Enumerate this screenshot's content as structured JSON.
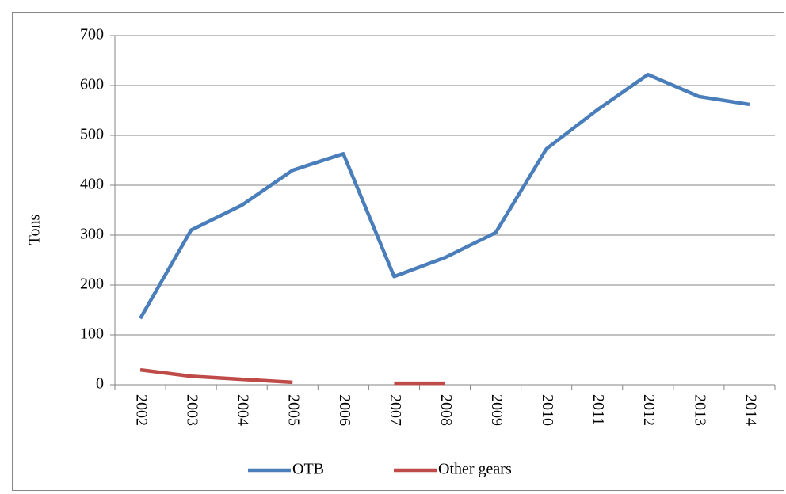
{
  "chart_data": {
    "type": "line",
    "y_label": "Tons",
    "categories": [
      "2002",
      "2003",
      "2004",
      "2005",
      "2006",
      "2007",
      "2008",
      "2009",
      "2010",
      "2011",
      "2012",
      "2013",
      "2014"
    ],
    "series": [
      {
        "name": "OTB",
        "color": "#4a7ebb",
        "values": [
          133,
          310,
          360,
          430,
          463,
          217,
          255,
          305,
          473,
          551,
          622,
          578,
          562
        ]
      },
      {
        "name": "Other gears",
        "color": "#be4b48",
        "values": [
          30,
          17,
          11,
          5,
          null,
          3,
          3,
          null,
          null,
          null,
          null,
          null,
          null
        ]
      }
    ],
    "ylim": [
      0,
      700
    ],
    "yticks": [
      0,
      100,
      200,
      300,
      400,
      500,
      600,
      700
    ],
    "grid": true,
    "legend": "bottom"
  }
}
